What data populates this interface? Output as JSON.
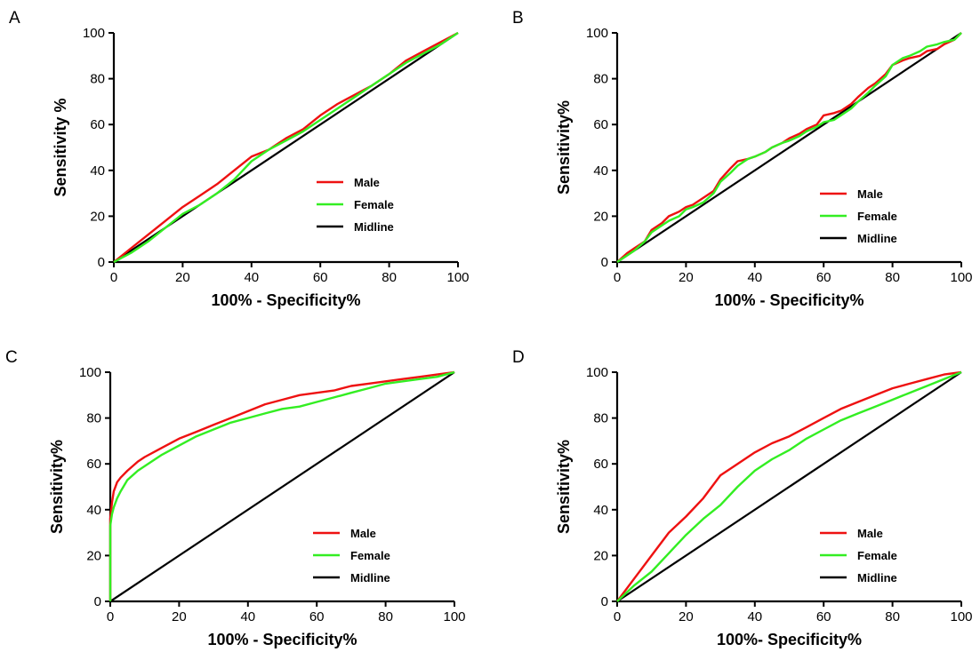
{
  "colors": {
    "male": "#ee1111",
    "female": "#33ee22",
    "midline": "#000000"
  },
  "chart_data": [
    {
      "panel": "A",
      "type": "line",
      "xlabel": "100% - Specificity%",
      "ylabel": "Sensitivity %",
      "xlim": [
        0,
        100
      ],
      "ylim": [
        0,
        100
      ],
      "xticks": [
        0,
        20,
        40,
        60,
        80,
        100
      ],
      "yticks": [
        0,
        20,
        40,
        60,
        80,
        100
      ],
      "legend_position": "center-right",
      "series": [
        {
          "name": "Male",
          "color_key": "male",
          "x": [
            0,
            5,
            10,
            15,
            20,
            25,
            30,
            35,
            40,
            45,
            50,
            55,
            60,
            65,
            70,
            75,
            80,
            85,
            90,
            95,
            100
          ],
          "y": [
            0,
            6,
            12,
            18,
            24,
            29,
            34,
            40,
            46,
            49,
            54,
            58,
            64,
            69,
            73,
            77,
            82,
            88,
            92,
            96,
            100
          ]
        },
        {
          "name": "Female",
          "color_key": "female",
          "x": [
            0,
            5,
            10,
            15,
            20,
            25,
            30,
            35,
            40,
            45,
            50,
            55,
            60,
            65,
            70,
            75,
            80,
            85,
            90,
            95,
            100
          ],
          "y": [
            0,
            4,
            9,
            15,
            21,
            25,
            30,
            36,
            44,
            49,
            53,
            57,
            62,
            67,
            72,
            77,
            82,
            87,
            91,
            95,
            100
          ]
        },
        {
          "name": "Midline",
          "color_key": "midline",
          "x": [
            0,
            100
          ],
          "y": [
            0,
            100
          ]
        }
      ]
    },
    {
      "panel": "B",
      "type": "line",
      "xlabel": "100% - Specificity%",
      "ylabel": "Sensitivity%",
      "xlim": [
        0,
        100
      ],
      "ylim": [
        0,
        100
      ],
      "xticks": [
        0,
        20,
        40,
        60,
        80,
        100
      ],
      "yticks": [
        0,
        20,
        40,
        60,
        80,
        100
      ],
      "legend_position": "bottom-right",
      "series": [
        {
          "name": "Male",
          "color_key": "male",
          "x": [
            0,
            3,
            5,
            8,
            10,
            13,
            15,
            18,
            20,
            22,
            25,
            28,
            30,
            33,
            35,
            38,
            40,
            43,
            45,
            48,
            50,
            53,
            55,
            58,
            60,
            63,
            65,
            68,
            70,
            73,
            75,
            78,
            80,
            83,
            85,
            88,
            90,
            93,
            95,
            98,
            100
          ],
          "y": [
            0,
            4,
            6,
            9,
            14,
            17,
            20,
            22,
            24,
            25,
            28,
            31,
            36,
            41,
            44,
            45,
            46,
            48,
            50,
            52,
            54,
            56,
            58,
            60,
            64,
            65,
            66,
            69,
            72,
            76,
            78,
            82,
            86,
            88,
            89,
            90,
            92,
            93,
            95,
            97,
            100
          ]
        },
        {
          "name": "Female",
          "color_key": "female",
          "x": [
            0,
            3,
            5,
            8,
            10,
            13,
            15,
            18,
            20,
            22,
            25,
            28,
            30,
            33,
            35,
            38,
            40,
            43,
            45,
            48,
            50,
            53,
            55,
            58,
            60,
            63,
            65,
            68,
            70,
            73,
            75,
            78,
            80,
            83,
            85,
            88,
            90,
            93,
            95,
            98,
            100
          ],
          "y": [
            0,
            3,
            5,
            9,
            13,
            16,
            18,
            20,
            23,
            24,
            26,
            30,
            35,
            39,
            42,
            45,
            46,
            48,
            50,
            52,
            53,
            55,
            57,
            59,
            61,
            62,
            64,
            67,
            70,
            74,
            77,
            81,
            86,
            89,
            90,
            92,
            94,
            95,
            96,
            97,
            100
          ]
        },
        {
          "name": "Midline",
          "color_key": "midline",
          "x": [
            0,
            100
          ],
          "y": [
            0,
            100
          ]
        }
      ]
    },
    {
      "panel": "C",
      "type": "line",
      "xlabel": "100% - Specificity%",
      "ylabel": "Sensitivity%",
      "xlim": [
        0,
        100
      ],
      "ylim": [
        0,
        100
      ],
      "xticks": [
        0,
        20,
        40,
        60,
        80,
        100
      ],
      "yticks": [
        0,
        20,
        40,
        60,
        80,
        100
      ],
      "legend_position": "bottom-right",
      "series": [
        {
          "name": "Male",
          "color_key": "male",
          "x": [
            0,
            0,
            0.5,
            1,
            2,
            3,
            5,
            8,
            10,
            15,
            20,
            25,
            30,
            35,
            40,
            45,
            50,
            55,
            60,
            65,
            70,
            75,
            80,
            85,
            90,
            95,
            100
          ],
          "y": [
            0,
            36,
            43,
            48,
            52,
            54,
            57,
            61,
            63,
            67,
            71,
            74,
            77,
            80,
            83,
            86,
            88,
            90,
            91,
            92,
            94,
            95,
            96,
            97,
            98,
            99,
            100
          ]
        },
        {
          "name": "Female",
          "color_key": "female",
          "x": [
            0,
            0,
            0.5,
            1,
            2,
            3,
            5,
            8,
            10,
            15,
            20,
            25,
            30,
            35,
            40,
            45,
            50,
            55,
            60,
            65,
            70,
            75,
            80,
            85,
            90,
            95,
            100
          ],
          "y": [
            0,
            33,
            38,
            41,
            45,
            48,
            53,
            57,
            59,
            64,
            68,
            72,
            75,
            78,
            80,
            82,
            84,
            85,
            87,
            89,
            91,
            93,
            95,
            96,
            97,
            98,
            100
          ]
        },
        {
          "name": "Midline",
          "color_key": "midline",
          "x": [
            0,
            100
          ],
          "y": [
            0,
            100
          ]
        }
      ]
    },
    {
      "panel": "D",
      "type": "line",
      "xlabel": "100%- Specificity%",
      "ylabel": "Sensitivity%",
      "xlim": [
        0,
        100
      ],
      "ylim": [
        0,
        100
      ],
      "xticks": [
        0,
        20,
        40,
        60,
        80,
        100
      ],
      "yticks": [
        0,
        20,
        40,
        60,
        80,
        100
      ],
      "legend_position": "bottom-right",
      "series": [
        {
          "name": "Male",
          "color_key": "male",
          "x": [
            0,
            5,
            10,
            15,
            20,
            25,
            30,
            35,
            40,
            45,
            50,
            55,
            60,
            65,
            70,
            75,
            80,
            85,
            90,
            95,
            100
          ],
          "y": [
            0,
            10,
            20,
            30,
            37,
            45,
            55,
            60,
            65,
            69,
            72,
            76,
            80,
            84,
            87,
            90,
            93,
            95,
            97,
            99,
            100
          ]
        },
        {
          "name": "Female",
          "color_key": "female",
          "x": [
            0,
            5,
            10,
            15,
            20,
            25,
            30,
            35,
            40,
            45,
            50,
            55,
            60,
            65,
            70,
            75,
            80,
            85,
            90,
            95,
            100
          ],
          "y": [
            0,
            7,
            13,
            21,
            29,
            36,
            42,
            50,
            57,
            62,
            66,
            71,
            75,
            79,
            82,
            85,
            88,
            91,
            94,
            97,
            100
          ]
        },
        {
          "name": "Midline",
          "color_key": "midline",
          "x": [
            0,
            100
          ],
          "y": [
            0,
            100
          ]
        }
      ]
    }
  ]
}
